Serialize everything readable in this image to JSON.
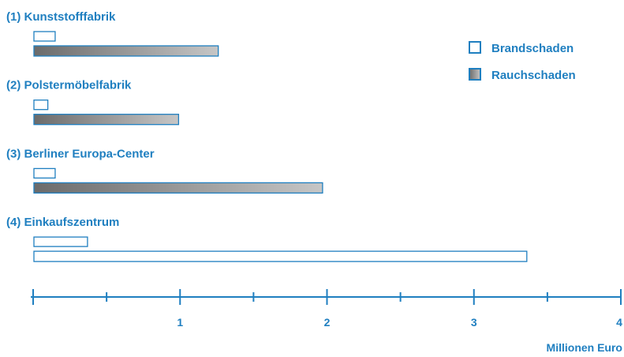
{
  "chart_data": {
    "type": "bar",
    "orientation": "horizontal",
    "categories": [
      "(1) Kunststofffabrik",
      "(2) Polstermöbelfabrik",
      "(3) Berliner Europa-Center",
      "(4) Einkaufszentrum"
    ],
    "series": [
      {
        "name": "Brandschaden",
        "values": [
          0.15,
          0.1,
          0.15,
          0.37
        ]
      },
      {
        "name": "Rauchschaden",
        "values": [
          1.26,
          0.99,
          1.97,
          3.36
        ]
      }
    ],
    "highlight_note": "Rauchschaden bar of category 4 drawn unfilled (outline only)",
    "xlabel": "Millionen Euro",
    "xlim": [
      0,
      4
    ],
    "xticks": [
      "1",
      "2",
      "3",
      "4"
    ],
    "minor_ticks": [
      0.5,
      1.5,
      2.5,
      3.5
    ],
    "legend_position": "top-right",
    "grid": false
  },
  "colors": {
    "accent": "#1f7fc0",
    "gradient_start": "#6b6b6b",
    "gradient_end": "#c6c6c6",
    "outline_fill": "#ffffff"
  }
}
